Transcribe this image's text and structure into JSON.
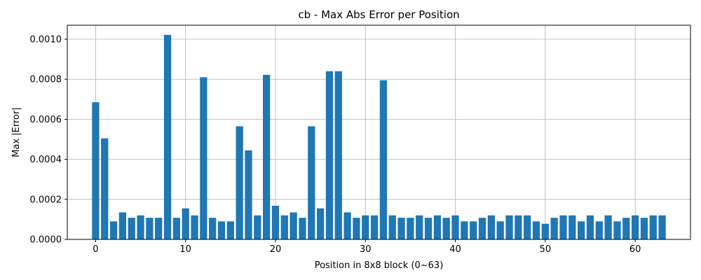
{
  "chart_data": {
    "type": "bar",
    "title": "cb - Max Abs Error per Position",
    "xlabel": "Position in 8x8 block (0~63)",
    "ylabel": "Max |Error|",
    "xlim": [
      -3.15,
      66.15
    ],
    "ylim": [
      0,
      0.00107
    ],
    "xticks": [
      0,
      10,
      20,
      30,
      40,
      50,
      60
    ],
    "yticks": [
      0,
      0.0002,
      0.0004,
      0.0006,
      0.0008,
      0.001
    ],
    "ytick_labels": [
      "0.0000",
      "0.0002",
      "0.0004",
      "0.0006",
      "0.0008",
      "0.0010"
    ],
    "grid": true,
    "bar_color": "#1f77b4",
    "x": [
      0,
      1,
      2,
      3,
      4,
      5,
      6,
      7,
      8,
      9,
      10,
      11,
      12,
      13,
      14,
      15,
      16,
      17,
      18,
      19,
      20,
      21,
      22,
      23,
      24,
      25,
      26,
      27,
      28,
      29,
      30,
      31,
      32,
      33,
      34,
      35,
      36,
      37,
      38,
      39,
      40,
      41,
      42,
      43,
      44,
      45,
      46,
      47,
      48,
      49,
      50,
      51,
      52,
      53,
      54,
      55,
      56,
      57,
      58,
      59,
      60,
      61,
      62,
      63
    ],
    "values": [
      0.000685,
      0.000505,
      9e-05,
      0.000135,
      0.000108,
      0.00012,
      0.000108,
      0.000108,
      0.001022,
      0.000108,
      0.000155,
      0.00012,
      0.00081,
      0.000108,
      9e-05,
      9e-05,
      0.000565,
      0.000445,
      0.00012,
      0.000822,
      0.000168,
      0.00012,
      0.000135,
      0.000108,
      0.000565,
      0.000155,
      0.00084,
      0.00084,
      0.000135,
      0.000108,
      0.00012,
      0.00012,
      0.000795,
      0.00012,
      0.000108,
      0.000108,
      0.00012,
      0.000108,
      0.00012,
      0.000108,
      0.00012,
      9e-05,
      9e-05,
      0.000108,
      0.00012,
      9e-05,
      0.00012,
      0.00012,
      0.00012,
      9e-05,
      7.8e-05,
      0.000108,
      0.00012,
      0.00012,
      9e-05,
      0.00012,
      9e-05,
      0.00012,
      9e-05,
      0.000108,
      0.00012,
      0.000108,
      0.00012,
      0.00012
    ]
  }
}
